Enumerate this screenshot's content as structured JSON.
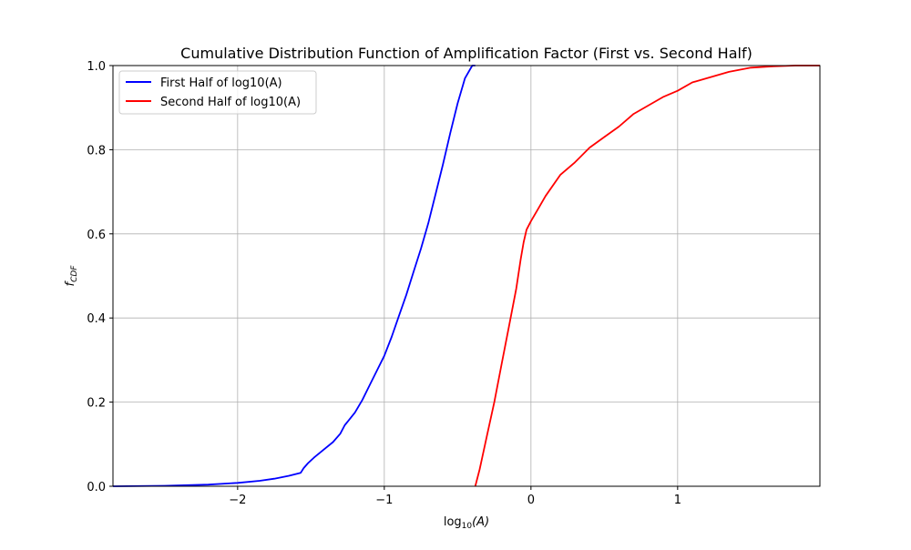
{
  "chart_data": {
    "type": "line",
    "title": "Cumulative Distribution Function of Amplification Factor (First vs. Second Half)",
    "xlabel": "log10(A)",
    "xlabel_base": "log",
    "xlabel_sub": "10",
    "xlabel_rest": "(A)",
    "ylabel": "fCDF",
    "ylabel_base": "f",
    "ylabel_sub": "CDF",
    "xlim": [
      -2.85,
      1.97
    ],
    "ylim": [
      0,
      1
    ],
    "x_ticks": [
      -2,
      -1,
      0,
      1
    ],
    "x_tick_labels": [
      "−2",
      "−1",
      "0",
      "1"
    ],
    "y_ticks": [
      0,
      0.2,
      0.4,
      0.6,
      0.8,
      1.0
    ],
    "y_tick_labels": [
      "0.0",
      "0.2",
      "0.4",
      "0.6",
      "0.8",
      "1.0"
    ],
    "grid": true,
    "legend_position": "top-left",
    "series": [
      {
        "name": "First Half of log10(A)",
        "color": "#0000ff",
        "x": [
          -2.85,
          -2.5,
          -2.2,
          -2.0,
          -1.85,
          -1.75,
          -1.65,
          -1.57,
          -1.55,
          -1.52,
          -1.48,
          -1.42,
          -1.35,
          -1.3,
          -1.27,
          -1.2,
          -1.15,
          -1.1,
          -1.05,
          -1.0,
          -0.95,
          -0.9,
          -0.85,
          -0.8,
          -0.75,
          -0.7,
          -0.65,
          -0.6,
          -0.55,
          -0.5,
          -0.45,
          -0.4,
          -0.38
        ],
        "y": [
          0.0,
          0.001,
          0.004,
          0.008,
          0.013,
          0.018,
          0.025,
          0.032,
          0.043,
          0.055,
          0.068,
          0.085,
          0.105,
          0.125,
          0.145,
          0.175,
          0.205,
          0.24,
          0.275,
          0.31,
          0.355,
          0.405,
          0.455,
          0.51,
          0.565,
          0.625,
          0.695,
          0.765,
          0.84,
          0.91,
          0.97,
          1.0,
          1.0
        ]
      },
      {
        "name": "Second Half of log10(A)",
        "color": "#ff0000",
        "x": [
          -0.38,
          -0.35,
          -0.3,
          -0.25,
          -0.2,
          -0.15,
          -0.1,
          -0.07,
          -0.05,
          -0.03,
          0.0,
          0.05,
          0.1,
          0.2,
          0.3,
          0.4,
          0.5,
          0.6,
          0.7,
          0.8,
          0.9,
          1.0,
          1.1,
          1.2,
          1.35,
          1.5,
          1.65,
          1.8,
          1.97
        ],
        "y": [
          0.0,
          0.04,
          0.12,
          0.2,
          0.29,
          0.38,
          0.47,
          0.54,
          0.58,
          0.61,
          0.63,
          0.66,
          0.69,
          0.74,
          0.77,
          0.805,
          0.83,
          0.855,
          0.885,
          0.905,
          0.925,
          0.94,
          0.96,
          0.97,
          0.985,
          0.995,
          0.998,
          1.0,
          1.0
        ]
      }
    ]
  }
}
